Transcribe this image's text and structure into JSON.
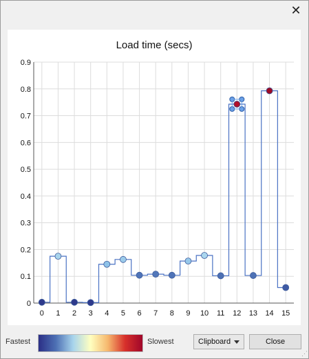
{
  "window": {
    "close_glyph": "✕"
  },
  "chart_data": {
    "type": "scatter",
    "title": "Load time (secs)",
    "xlabel": "",
    "ylabel": "",
    "x_ticks": [
      0,
      1,
      2,
      3,
      4,
      5,
      6,
      7,
      8,
      9,
      10,
      11,
      12,
      13,
      14,
      15
    ],
    "y_ticks": [
      "0",
      "0.1",
      "0.2",
      "0.3",
      "0.4",
      "0.5",
      "0.6",
      "0.7",
      "0.8",
      "0.9"
    ],
    "xlim": [
      -0.5,
      15.5
    ],
    "ylim": [
      0,
      0.9
    ],
    "grid": true,
    "connector": "step",
    "points": [
      {
        "x": 0,
        "y": 0.003,
        "color": "#2e3a8c"
      },
      {
        "x": 1,
        "y": 0.175,
        "color": "#a8d4ec"
      },
      {
        "x": 2,
        "y": 0.003,
        "color": "#2e3a8c"
      },
      {
        "x": 3,
        "y": 0.002,
        "color": "#2e3a8c"
      },
      {
        "x": 4,
        "y": 0.145,
        "color": "#8ec2e8"
      },
      {
        "x": 5,
        "y": 0.163,
        "color": "#9ccbea"
      },
      {
        "x": 6,
        "y": 0.104,
        "color": "#4f74b8"
      },
      {
        "x": 7,
        "y": 0.108,
        "color": "#5278ba"
      },
      {
        "x": 8,
        "y": 0.104,
        "color": "#4f74b8"
      },
      {
        "x": 9,
        "y": 0.157,
        "color": "#97c8ea"
      },
      {
        "x": 10,
        "y": 0.178,
        "color": "#aad6ee"
      },
      {
        "x": 11,
        "y": 0.102,
        "color": "#4d70b4"
      },
      {
        "x": 12,
        "y": 0.743,
        "color": "#b0102a",
        "selected": true
      },
      {
        "x": 13,
        "y": 0.103,
        "color": "#4e72b6"
      },
      {
        "x": 14,
        "y": 0.793,
        "color": "#9e0a24"
      },
      {
        "x": 15,
        "y": 0.058,
        "color": "#3f5aa4"
      }
    ]
  },
  "legend": {
    "fastest_label": "Fastest",
    "slowest_label": "Slowest",
    "gradient_colors": [
      "#2b2f86",
      "#4d70b4",
      "#a8d4ec",
      "#ffffc0",
      "#f6b86e",
      "#d7302b",
      "#a0062a"
    ]
  },
  "controls": {
    "clipboard_label": "Clipboard",
    "close_label": "Close"
  }
}
